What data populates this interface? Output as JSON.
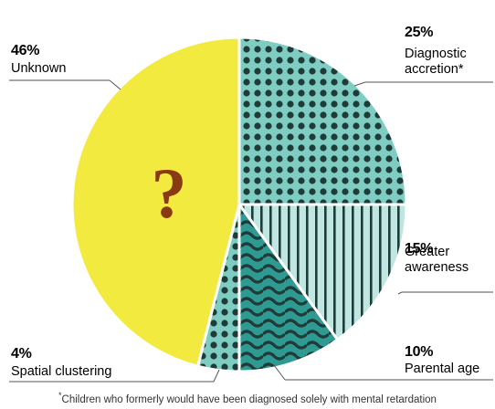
{
  "chart_data": {
    "type": "pie",
    "slices": [
      {
        "key": "diagnostic_accretion",
        "value": 25,
        "pct_label": "25%",
        "label_lines": [
          "Diagnostic",
          "accretion*"
        ],
        "fill": "#7fcdc2",
        "pattern": "dots"
      },
      {
        "key": "greater_awareness",
        "value": 15,
        "pct_label": "15%",
        "label_lines": [
          "Greater",
          "awareness"
        ],
        "fill": "#bfe6e0",
        "pattern": "stripes"
      },
      {
        "key": "parental_age",
        "value": 10,
        "pct_label": "10%",
        "label_lines": [
          "Parental age"
        ],
        "fill": "#2e9a92",
        "pattern": "waves"
      },
      {
        "key": "spatial_clustering",
        "value": 4,
        "pct_label": "4%",
        "label_lines": [
          "Spatial clustering"
        ],
        "fill": "#7fcdc2",
        "pattern": "dots"
      },
      {
        "key": "unknown",
        "value": 46,
        "pct_label": "46%",
        "label_lines": [
          "Unknown"
        ],
        "fill": "#f2ea3f",
        "pattern": "none"
      }
    ],
    "center_symbol": "?",
    "center_symbol_color": "#8a3a12",
    "pattern_ink": "#1f3b38",
    "rule_color": "#555555",
    "footnote_marker": "*",
    "footnote_text": "Children who formerly would have been diagnosed solely with mental retardation"
  }
}
